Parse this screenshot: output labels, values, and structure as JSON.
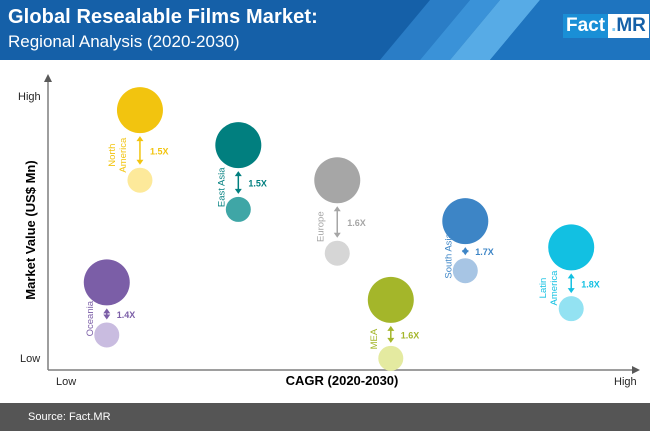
{
  "header": {
    "title": "Global Resealable Films Market:",
    "subtitle": "Regional Analysis (2020-2030)",
    "logo": {
      "part1": "Fact",
      "dot": ".",
      "part2": "MR"
    },
    "colors": {
      "background": "#1560a8",
      "accent": "#1a8fd6",
      "stripe": "#2e86cf"
    }
  },
  "footer": {
    "source": "Source: Fact.MR"
  },
  "chart_data": {
    "type": "bubble",
    "xlabel": "CAGR (2020-2030)",
    "ylabel": "Market Value (US$ Mn)",
    "x_ticks": {
      "low": "Low",
      "high": "High"
    },
    "y_ticks": {
      "low": "Low",
      "high": "High"
    },
    "series": [
      {
        "name": "North America",
        "label_lines": [
          "North",
          "America"
        ],
        "multiplier": "1.5X",
        "color": "#f2c40f",
        "light_color": "#fde99a",
        "x": 0.158,
        "y_large": 0.89,
        "y_small": 0.65,
        "size_large": 1.0,
        "size_small": 0.55
      },
      {
        "name": "East Asia",
        "label_lines": [
          "East Asia"
        ],
        "multiplier": "1.5X",
        "color": "#017f7f",
        "light_color": "#3fa6a6",
        "x": 0.327,
        "y_large": 0.77,
        "y_small": 0.55,
        "size_large": 1.0,
        "size_small": 0.55
      },
      {
        "name": "Europe",
        "label_lines": [
          "Europe"
        ],
        "multiplier": "1.6X",
        "color": "#a6a6a6",
        "light_color": "#d6d6d6",
        "x": 0.497,
        "y_large": 0.65,
        "y_small": 0.4,
        "size_large": 1.0,
        "size_small": 0.55
      },
      {
        "name": "South Asia",
        "label_lines": [
          "South Asia"
        ],
        "multiplier": "1.7X",
        "color": "#3d85c6",
        "light_color": "#a7c5e4",
        "x": 0.717,
        "y_large": 0.51,
        "y_small": 0.34,
        "size_large": 1.0,
        "size_small": 0.55
      },
      {
        "name": "Latin America",
        "label_lines": [
          "Latin",
          "America"
        ],
        "multiplier": "1.8X",
        "color": "#12c0e2",
        "light_color": "#93e2f2",
        "x": 0.899,
        "y_large": 0.42,
        "y_small": 0.21,
        "size_large": 1.0,
        "size_small": 0.55
      },
      {
        "name": "Oceania",
        "label_lines": [
          "Oceania"
        ],
        "multiplier": "1.4X",
        "color": "#7b5ea7",
        "light_color": "#c9bce0",
        "x": 0.101,
        "y_large": 0.3,
        "y_small": 0.12,
        "size_large": 1.0,
        "size_small": 0.55
      },
      {
        "name": "MEA",
        "label_lines": [
          "MEA"
        ],
        "multiplier": "1.6X",
        "color": "#a4b62a",
        "light_color": "#e4eaa0",
        "x": 0.589,
        "y_large": 0.24,
        "y_small": 0.04,
        "size_large": 1.0,
        "size_small": 0.55
      }
    ]
  }
}
